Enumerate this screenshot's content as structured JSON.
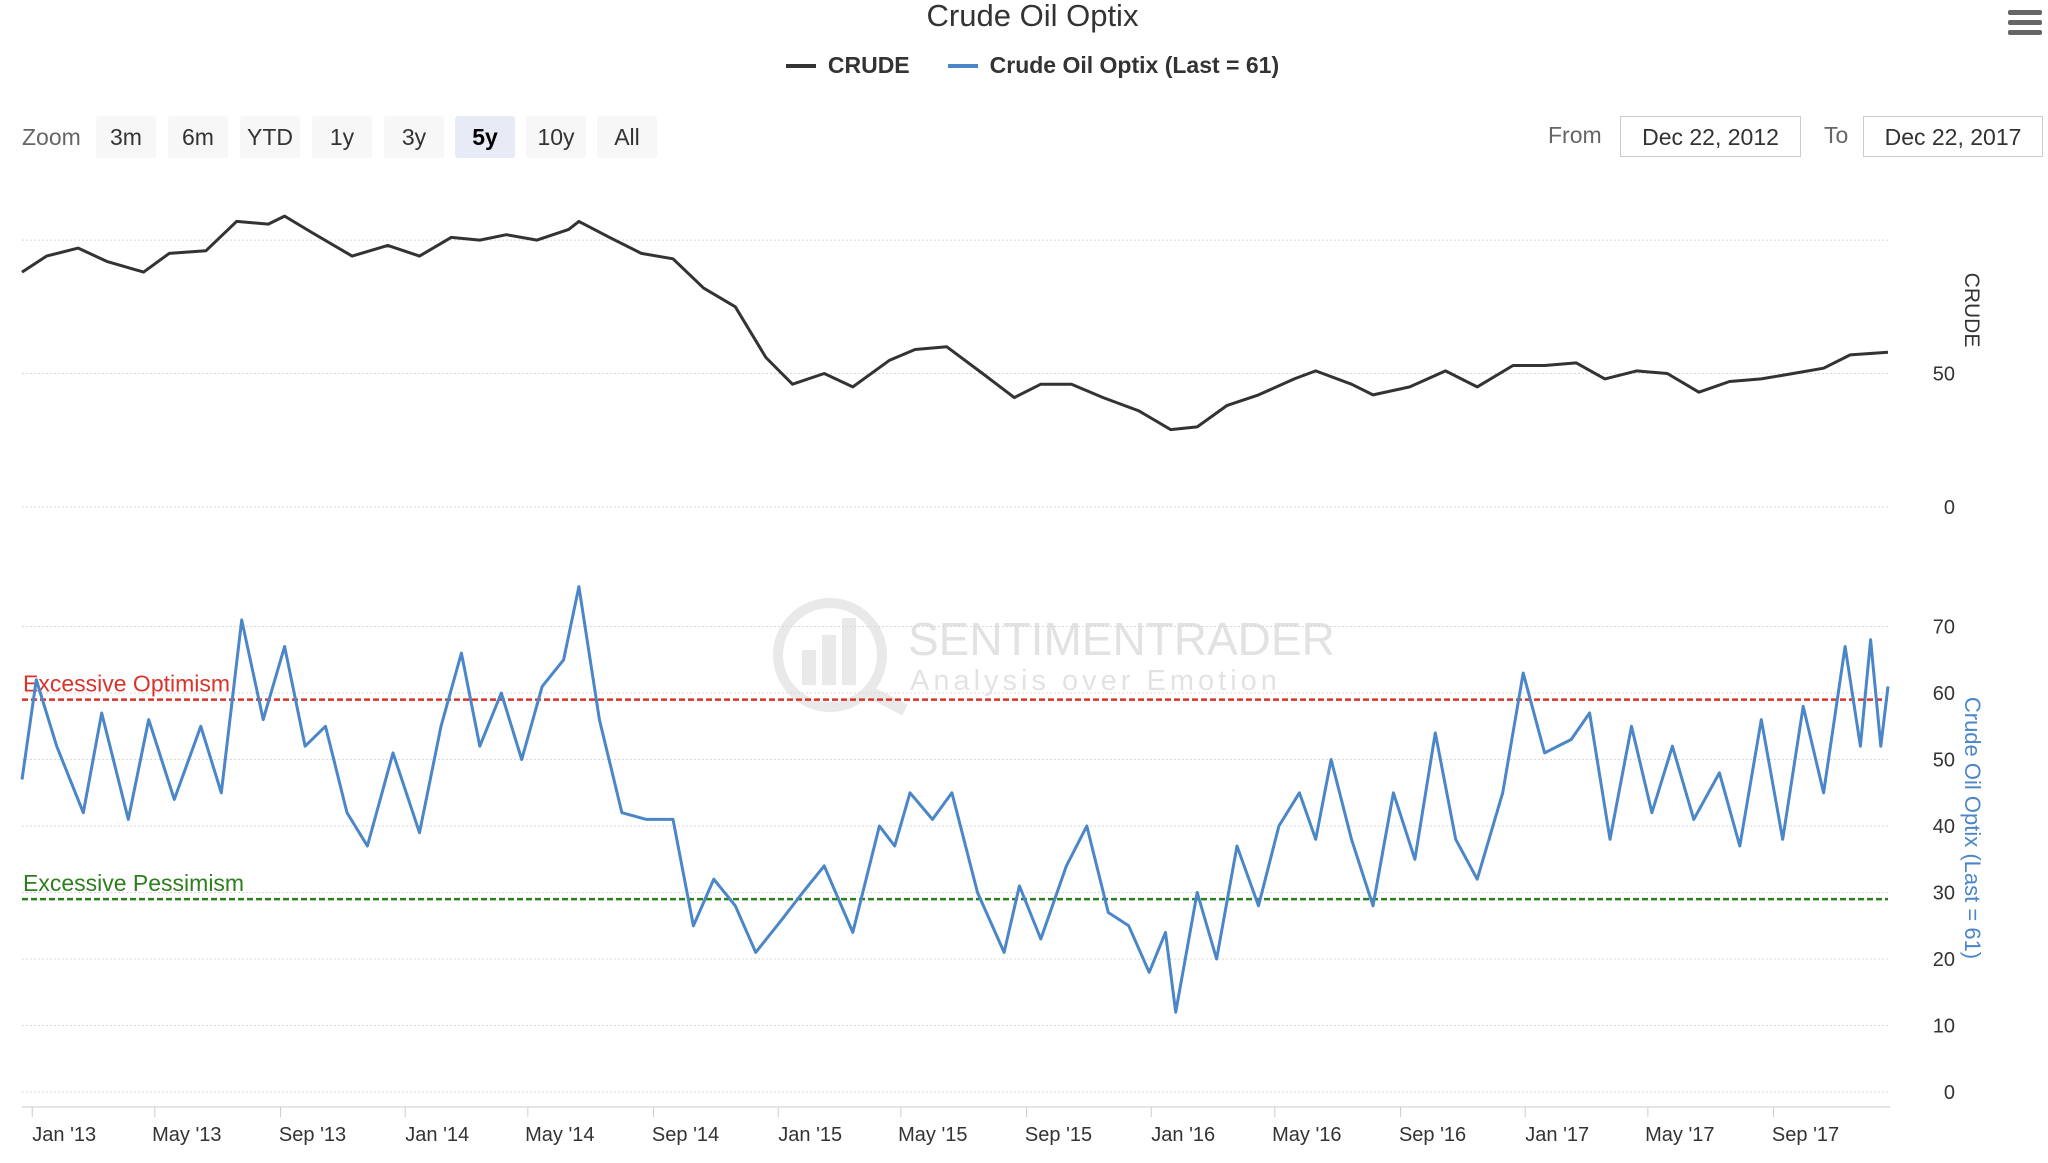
{
  "chart_title": "Crude Oil Optix",
  "legend": [
    {
      "label": "CRUDE",
      "color": "#333333"
    },
    {
      "label": "Crude Oil Optix (Last = 61)",
      "color": "#4a86c8"
    }
  ],
  "zoom": {
    "label": "Zoom",
    "buttons": [
      "3m",
      "6m",
      "YTD",
      "1y",
      "3y",
      "5y",
      "10y",
      "All"
    ],
    "active": "5y"
  },
  "range": {
    "from_label": "From",
    "from_value": "Dec 22, 2012",
    "to_label": "To",
    "to_value": "Dec 22, 2017"
  },
  "watermark": {
    "name": "SENTIMENTRADER",
    "tagline": "Analysis over Emotion"
  },
  "colors": {
    "crude": "#333333",
    "optix": "#4a86c8",
    "optimism": "#d9342b",
    "pessimism": "#2e7d1e",
    "grid": "#d8d8d8"
  },
  "chart_data": [
    {
      "type": "line",
      "series": [
        {
          "name": "CRUDE",
          "color": "#333333",
          "points": [
            [
              "2012-12-22",
              88
            ],
            [
              "2013-01-15",
              94
            ],
            [
              "2013-02-15",
              97
            ],
            [
              "2013-03-15",
              92
            ],
            [
              "2013-04-20",
              88
            ],
            [
              "2013-05-15",
              95
            ],
            [
              "2013-06-20",
              96
            ],
            [
              "2013-07-20",
              107
            ],
            [
              "2013-08-20",
              106
            ],
            [
              "2013-09-05",
              109
            ],
            [
              "2013-10-01",
              103
            ],
            [
              "2013-11-10",
              94
            ],
            [
              "2013-12-15",
              98
            ],
            [
              "2014-01-15",
              94
            ],
            [
              "2014-02-15",
              101
            ],
            [
              "2014-03-15",
              100
            ],
            [
              "2014-04-10",
              102
            ],
            [
              "2014-05-10",
              100
            ],
            [
              "2014-06-10",
              104
            ],
            [
              "2014-06-20",
              107
            ],
            [
              "2014-07-20",
              101
            ],
            [
              "2014-08-20",
              95
            ],
            [
              "2014-09-20",
              93
            ],
            [
              "2014-10-20",
              82
            ],
            [
              "2014-11-20",
              75
            ],
            [
              "2014-12-20",
              56
            ],
            [
              "2015-01-15",
              46
            ],
            [
              "2015-02-15",
              50
            ],
            [
              "2015-03-15",
              45
            ],
            [
              "2015-04-20",
              55
            ],
            [
              "2015-05-15",
              59
            ],
            [
              "2015-06-15",
              60
            ],
            [
              "2015-07-20",
              50
            ],
            [
              "2015-08-20",
              41
            ],
            [
              "2015-09-15",
              46
            ],
            [
              "2015-10-15",
              46
            ],
            [
              "2015-11-15",
              41
            ],
            [
              "2015-12-20",
              36
            ],
            [
              "2016-01-20",
              29
            ],
            [
              "2016-02-15",
              30
            ],
            [
              "2016-03-15",
              38
            ],
            [
              "2016-04-15",
              42
            ],
            [
              "2016-05-20",
              48
            ],
            [
              "2016-06-10",
              51
            ],
            [
              "2016-07-15",
              46
            ],
            [
              "2016-08-05",
              42
            ],
            [
              "2016-09-10",
              45
            ],
            [
              "2016-10-15",
              51
            ],
            [
              "2016-11-15",
              45
            ],
            [
              "2016-12-20",
              53
            ],
            [
              "2017-01-20",
              53
            ],
            [
              "2017-02-20",
              54
            ],
            [
              "2017-03-20",
              48
            ],
            [
              "2017-04-20",
              51
            ],
            [
              "2017-05-20",
              50
            ],
            [
              "2017-06-20",
              43
            ],
            [
              "2017-07-20",
              47
            ],
            [
              "2017-08-20",
              48
            ],
            [
              "2017-09-20",
              50
            ],
            [
              "2017-10-20",
              52
            ],
            [
              "2017-11-15",
              57
            ],
            [
              "2017-12-22",
              58
            ]
          ]
        }
      ],
      "y_axis": {
        "label": "CRUDE",
        "ticks": [
          0,
          50
        ],
        "ylim": [
          0,
          130
        ]
      },
      "grid": true
    },
    {
      "type": "line",
      "series": [
        {
          "name": "Crude Oil Optix (Last = 61)",
          "color": "#4a86c8",
          "points": [
            [
              "2012-12-22",
              47
            ],
            [
              "2013-01-05",
              62
            ],
            [
              "2013-01-25",
              52
            ],
            [
              "2013-02-20",
              42
            ],
            [
              "2013-03-10",
              57
            ],
            [
              "2013-04-05",
              41
            ],
            [
              "2013-04-25",
              56
            ],
            [
              "2013-05-20",
              44
            ],
            [
              "2013-06-15",
              55
            ],
            [
              "2013-07-05",
              45
            ],
            [
              "2013-07-25",
              71
            ],
            [
              "2013-08-15",
              56
            ],
            [
              "2013-09-05",
              67
            ],
            [
              "2013-09-25",
              52
            ],
            [
              "2013-10-15",
              55
            ],
            [
              "2013-11-05",
              42
            ],
            [
              "2013-11-25",
              37
            ],
            [
              "2013-12-20",
              51
            ],
            [
              "2014-01-15",
              39
            ],
            [
              "2014-02-05",
              55
            ],
            [
              "2014-02-25",
              66
            ],
            [
              "2014-03-15",
              52
            ],
            [
              "2014-04-05",
              60
            ],
            [
              "2014-04-25",
              50
            ],
            [
              "2014-05-15",
              61
            ],
            [
              "2014-06-05",
              65
            ],
            [
              "2014-06-20",
              76
            ],
            [
              "2014-07-10",
              56
            ],
            [
              "2014-08-01",
              42
            ],
            [
              "2014-08-25",
              41
            ],
            [
              "2014-09-20",
              41
            ],
            [
              "2014-10-10",
              25
            ],
            [
              "2014-10-30",
              32
            ],
            [
              "2014-11-20",
              28
            ],
            [
              "2014-12-10",
              21
            ],
            [
              "2015-01-05",
              26
            ],
            [
              "2015-01-25",
              30
            ],
            [
              "2015-02-15",
              34
            ],
            [
              "2015-03-15",
              24
            ],
            [
              "2015-04-10",
              40
            ],
            [
              "2015-04-25",
              37
            ],
            [
              "2015-05-10",
              45
            ],
            [
              "2015-06-01",
              41
            ],
            [
              "2015-06-20",
              45
            ],
            [
              "2015-07-15",
              30
            ],
            [
              "2015-08-10",
              21
            ],
            [
              "2015-08-25",
              31
            ],
            [
              "2015-09-15",
              23
            ],
            [
              "2015-10-10",
              34
            ],
            [
              "2015-10-30",
              40
            ],
            [
              "2015-11-20",
              27
            ],
            [
              "2015-12-10",
              25
            ],
            [
              "2015-12-30",
              18
            ],
            [
              "2016-01-15",
              24
            ],
            [
              "2016-01-25",
              12
            ],
            [
              "2016-02-15",
              30
            ],
            [
              "2016-03-05",
              20
            ],
            [
              "2016-03-25",
              37
            ],
            [
              "2016-04-15",
              28
            ],
            [
              "2016-05-05",
              40
            ],
            [
              "2016-05-25",
              45
            ],
            [
              "2016-06-10",
              38
            ],
            [
              "2016-06-25",
              50
            ],
            [
              "2016-07-15",
              38
            ],
            [
              "2016-08-05",
              28
            ],
            [
              "2016-08-25",
              45
            ],
            [
              "2016-09-15",
              35
            ],
            [
              "2016-10-05",
              54
            ],
            [
              "2016-10-25",
              38
            ],
            [
              "2016-11-15",
              32
            ],
            [
              "2016-12-10",
              45
            ],
            [
              "2016-12-30",
              63
            ],
            [
              "2017-01-20",
              51
            ],
            [
              "2017-02-15",
              53
            ],
            [
              "2017-03-05",
              57
            ],
            [
              "2017-03-25",
              38
            ],
            [
              "2017-04-15",
              55
            ],
            [
              "2017-05-05",
              42
            ],
            [
              "2017-05-25",
              52
            ],
            [
              "2017-06-15",
              41
            ],
            [
              "2017-07-10",
              48
            ],
            [
              "2017-07-30",
              37
            ],
            [
              "2017-08-20",
              56
            ],
            [
              "2017-09-10",
              38
            ],
            [
              "2017-09-30",
              58
            ],
            [
              "2017-10-20",
              45
            ],
            [
              "2017-11-10",
              67
            ],
            [
              "2017-11-25",
              52
            ],
            [
              "2017-12-05",
              68
            ],
            [
              "2017-12-15",
              52
            ],
            [
              "2017-12-22",
              61
            ]
          ]
        }
      ],
      "y_axis": {
        "label": "Crude Oil Optix (Last = 61)",
        "ticks": [
          0,
          10,
          20,
          30,
          40,
          50,
          60,
          70
        ],
        "ylim": [
          0,
          80
        ]
      },
      "reference_lines": [
        {
          "label": "Excessive Optimism",
          "y": 59,
          "color": "#d9342b"
        },
        {
          "label": "Excessive Pessimism",
          "y": 29,
          "color": "#2e7d1e"
        }
      ],
      "grid": true
    }
  ],
  "x_axis": {
    "ticks": [
      [
        "2013-01-01",
        "Jan '13"
      ],
      [
        "2013-05-01",
        "May '13"
      ],
      [
        "2013-09-01",
        "Sep '13"
      ],
      [
        "2014-01-01",
        "Jan '14"
      ],
      [
        "2014-05-01",
        "May '14"
      ],
      [
        "2014-09-01",
        "Sep '14"
      ],
      [
        "2015-01-01",
        "Jan '15"
      ],
      [
        "2015-05-01",
        "May '15"
      ],
      [
        "2015-09-01",
        "Sep '15"
      ],
      [
        "2016-01-01",
        "Jan '16"
      ],
      [
        "2016-05-01",
        "May '16"
      ],
      [
        "2016-09-01",
        "Sep '16"
      ],
      [
        "2017-01-01",
        "Jan '17"
      ],
      [
        "2017-05-01",
        "May '17"
      ],
      [
        "2017-09-01",
        "Sep '17"
      ]
    ],
    "range": [
      "2012-12-22",
      "2017-12-22"
    ]
  }
}
